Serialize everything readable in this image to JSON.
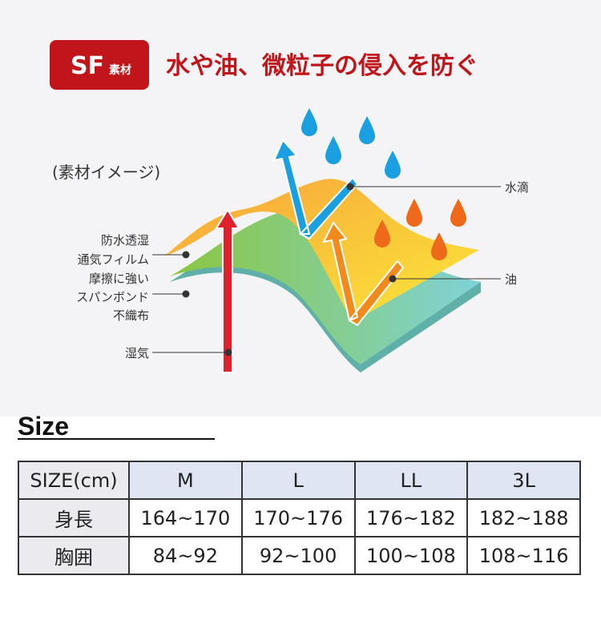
{
  "header": {
    "badge_main": "SF",
    "badge_sub": "素材",
    "title": "水や油、微粒子の侵入を防ぐ"
  },
  "diagram": {
    "caption": "(素材イメージ)",
    "labels": {
      "water": "水滴",
      "oil": "油",
      "film": [
        "防水透湿",
        "通気フィルム"
      ],
      "spunbond": [
        "摩擦に強い",
        "スパンボンド",
        "不織布"
      ],
      "moisture": "湿気"
    }
  },
  "size": {
    "heading": "Size",
    "table": {
      "header": [
        "SIZE(cm)",
        "M",
        "L",
        "LL",
        "3L"
      ],
      "rows": [
        [
          "身長",
          "164~170",
          "170~176",
          "176~182",
          "182~188"
        ],
        [
          "胸囲",
          "84~92",
          "92~100",
          "100~108",
          "108~116"
        ]
      ]
    }
  }
}
